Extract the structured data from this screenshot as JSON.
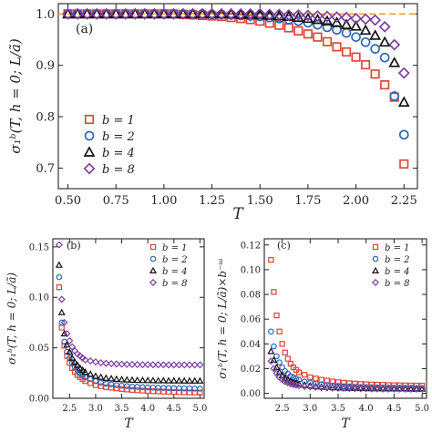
{
  "chart_data": [
    {
      "panel": "(a)",
      "type": "scatter",
      "xlabel": "T",
      "ylabel": "σ₁ᵇ(T, h = 0; L/ã)",
      "xlim": [
        0.45,
        2.32
      ],
      "ylim": [
        0.66,
        1.02
      ],
      "xticks": [
        "0.50",
        "0.75",
        "1.00",
        "1.25",
        "1.50",
        "1.75",
        "2.00",
        "2.25"
      ],
      "yticks": [
        "0.7",
        "0.8",
        "0.9",
        "1.0"
      ],
      "reference_line": {
        "y": 1.0,
        "style": "dashed",
        "color": "#f0a030"
      },
      "legend_position": "lower-left",
      "series": [
        {
          "name": "b = 1",
          "marker": "square",
          "color": "#e0453a",
          "x": [
            0.5,
            0.55,
            0.6,
            0.65,
            0.7,
            0.75,
            0.8,
            0.85,
            0.9,
            0.95,
            1.0,
            1.05,
            1.1,
            1.15,
            1.2,
            1.25,
            1.3,
            1.35,
            1.4,
            1.45,
            1.5,
            1.55,
            1.6,
            1.65,
            1.7,
            1.75,
            1.8,
            1.85,
            1.9,
            1.95,
            2.0,
            2.05,
            2.1,
            2.15,
            2.2,
            2.25
          ],
          "y": [
            1.0,
            1.0,
            1.0,
            1.0,
            1.0,
            1.0,
            1.0,
            1.0,
            1.0,
            1.0,
            1.0,
            1.0,
            0.999,
            0.998,
            0.997,
            0.996,
            0.995,
            0.993,
            0.991,
            0.989,
            0.986,
            0.982,
            0.978,
            0.973,
            0.967,
            0.961,
            0.955,
            0.946,
            0.936,
            0.926,
            0.916,
            0.901,
            0.883,
            0.862,
            0.838,
            0.708
          ]
        },
        {
          "name": "b = 2",
          "marker": "circle",
          "color": "#2f64b8",
          "x": [
            0.5,
            0.55,
            0.6,
            0.65,
            0.7,
            0.75,
            0.8,
            0.85,
            0.9,
            0.95,
            1.0,
            1.05,
            1.1,
            1.15,
            1.2,
            1.25,
            1.3,
            1.35,
            1.4,
            1.45,
            1.5,
            1.55,
            1.6,
            1.65,
            1.7,
            1.75,
            1.8,
            1.85,
            1.9,
            1.95,
            2.0,
            2.05,
            2.1,
            2.15,
            2.2,
            2.25
          ],
          "y": [
            1.0,
            1.0,
            1.0,
            1.0,
            1.0,
            1.0,
            1.0,
            1.0,
            1.0,
            1.0,
            1.0,
            1.0,
            1.0,
            1.0,
            1.0,
            0.999,
            0.999,
            0.998,
            0.997,
            0.996,
            0.995,
            0.993,
            0.991,
            0.989,
            0.986,
            0.983,
            0.979,
            0.974,
            0.969,
            0.963,
            0.955,
            0.945,
            0.932,
            0.915,
            0.84,
            0.765
          ]
        },
        {
          "name": "b = 4",
          "marker": "triangle",
          "color": "#111111",
          "x": [
            0.5,
            0.55,
            0.6,
            0.65,
            0.7,
            0.75,
            0.8,
            0.85,
            0.9,
            0.95,
            1.0,
            1.05,
            1.1,
            1.15,
            1.2,
            1.25,
            1.3,
            1.35,
            1.4,
            1.45,
            1.5,
            1.55,
            1.6,
            1.65,
            1.7,
            1.75,
            1.8,
            1.85,
            1.9,
            1.95,
            2.0,
            2.05,
            2.1,
            2.15,
            2.2,
            2.25
          ],
          "y": [
            1.0,
            1.0,
            1.0,
            1.0,
            1.0,
            1.0,
            1.0,
            1.0,
            1.0,
            1.0,
            1.0,
            1.0,
            1.0,
            1.0,
            1.0,
            1.0,
            1.0,
            1.0,
            0.999,
            0.999,
            0.998,
            0.997,
            0.996,
            0.995,
            0.993,
            0.991,
            0.989,
            0.986,
            0.983,
            0.979,
            0.976,
            0.968,
            0.958,
            0.945,
            0.905,
            0.828
          ]
        },
        {
          "name": "b = 8",
          "marker": "diamond",
          "color": "#7b3f9e",
          "x": [
            0.5,
            0.55,
            0.6,
            0.65,
            0.7,
            0.75,
            0.8,
            0.85,
            0.9,
            0.95,
            1.0,
            1.05,
            1.1,
            1.15,
            1.2,
            1.25,
            1.3,
            1.35,
            1.4,
            1.45,
            1.5,
            1.55,
            1.6,
            1.65,
            1.7,
            1.75,
            1.8,
            1.85,
            1.9,
            1.95,
            2.0,
            2.05,
            2.1,
            2.15,
            2.2,
            2.25
          ],
          "y": [
            1.0,
            1.0,
            1.0,
            1.0,
            1.0,
            1.0,
            1.0,
            1.0,
            1.0,
            1.0,
            1.0,
            1.0,
            1.0,
            1.0,
            1.0,
            1.0,
            1.0,
            1.0,
            1.0,
            1.0,
            1.0,
            0.999,
            0.999,
            0.998,
            0.998,
            0.997,
            0.996,
            0.995,
            0.994,
            0.993,
            0.991,
            0.99,
            0.988,
            0.975,
            0.94,
            0.885
          ]
        }
      ]
    },
    {
      "panel": "(b)",
      "type": "scatter",
      "xlabel": "T",
      "ylabel": "σ₁ᵇ(T, h = 0; L/ã)",
      "xlim": [
        2.18,
        5.08
      ],
      "ylim": [
        0.0,
        0.158
      ],
      "xticks": [
        "2.5",
        "3.0",
        "3.5",
        "4.0",
        "4.5",
        "5.0"
      ],
      "yticks": [
        "0.00",
        "0.05",
        "0.10",
        "0.15"
      ],
      "legend_position": "top-right",
      "series": [
        {
          "name": "b = 1",
          "marker": "square",
          "color": "#e0453a",
          "x": [
            2.3,
            2.35,
            2.4,
            2.45,
            2.5,
            2.55,
            2.6,
            2.65,
            2.7,
            2.75,
            2.8,
            2.9,
            3.0,
            3.1,
            3.2,
            3.3,
            3.4,
            3.5,
            3.6,
            3.7,
            3.8,
            3.9,
            4.0,
            4.1,
            4.2,
            4.3,
            4.4,
            4.5,
            4.6,
            4.7,
            4.8,
            4.9,
            5.0
          ],
          "y": [
            0.11,
            0.07,
            0.052,
            0.042,
            0.035,
            0.03,
            0.026,
            0.023,
            0.021,
            0.019,
            0.017,
            0.015,
            0.013,
            0.012,
            0.011,
            0.0105,
            0.0098,
            0.0092,
            0.0087,
            0.0083,
            0.0079,
            0.0076,
            0.0073,
            0.007,
            0.0068,
            0.0066,
            0.0064,
            0.0062,
            0.006,
            0.0059,
            0.0058,
            0.0057,
            0.0056
          ]
        },
        {
          "name": "b = 2",
          "marker": "circle",
          "color": "#2f64b8",
          "x": [
            2.3,
            2.35,
            2.4,
            2.45,
            2.5,
            2.55,
            2.6,
            2.65,
            2.7,
            2.75,
            2.8,
            2.9,
            3.0,
            3.1,
            3.2,
            3.3,
            3.4,
            3.5,
            3.6,
            3.7,
            3.8,
            3.9,
            4.0,
            4.1,
            4.2,
            4.3,
            4.4,
            4.5,
            4.6,
            4.7,
            4.8,
            4.9,
            5.0
          ],
          "y": [
            0.12,
            0.075,
            0.056,
            0.046,
            0.04,
            0.035,
            0.031,
            0.028,
            0.025,
            0.023,
            0.021,
            0.019,
            0.017,
            0.0155,
            0.0145,
            0.0137,
            0.013,
            0.0125,
            0.012,
            0.0116,
            0.0113,
            0.011,
            0.0108,
            0.0106,
            0.0104,
            0.0102,
            0.0101,
            0.01,
            0.0099,
            0.0098,
            0.0097,
            0.0096,
            0.0095
          ]
        },
        {
          "name": "b = 4",
          "marker": "triangle",
          "color": "#111111",
          "x": [
            2.3,
            2.35,
            2.4,
            2.45,
            2.5,
            2.55,
            2.6,
            2.65,
            2.7,
            2.75,
            2.8,
            2.9,
            3.0,
            3.1,
            3.2,
            3.3,
            3.4,
            3.5,
            3.6,
            3.7,
            3.8,
            3.9,
            4.0,
            4.1,
            4.2,
            4.3,
            4.4,
            4.5,
            4.6,
            4.7,
            4.8,
            4.9,
            5.0
          ],
          "y": [
            0.132,
            0.085,
            0.064,
            0.053,
            0.046,
            0.04,
            0.036,
            0.033,
            0.03,
            0.028,
            0.026,
            0.024,
            0.022,
            0.021,
            0.02,
            0.0195,
            0.019,
            0.0186,
            0.0183,
            0.0181,
            0.0179,
            0.0178,
            0.0177,
            0.0176,
            0.0175,
            0.0175,
            0.0174,
            0.0174,
            0.0174,
            0.0173,
            0.0173,
            0.0173,
            0.0173
          ]
        },
        {
          "name": "b = 8",
          "marker": "diamond",
          "color": "#7b3f9e",
          "x": [
            2.3,
            2.35,
            2.4,
            2.45,
            2.5,
            2.55,
            2.6,
            2.65,
            2.7,
            2.75,
            2.8,
            2.9,
            3.0,
            3.1,
            3.2,
            3.3,
            3.4,
            3.5,
            3.6,
            3.7,
            3.8,
            3.9,
            4.0,
            4.1,
            4.2,
            4.3,
            4.4,
            4.5,
            4.6,
            4.7,
            4.8,
            4.9,
            5.0
          ],
          "y": [
            0.152,
            0.098,
            0.075,
            0.064,
            0.057,
            0.051,
            0.047,
            0.044,
            0.042,
            0.04,
            0.038,
            0.037,
            0.036,
            0.0352,
            0.0347,
            0.0343,
            0.034,
            0.0338,
            0.0336,
            0.0335,
            0.0334,
            0.0333,
            0.0333,
            0.0332,
            0.0332,
            0.0332,
            0.0331,
            0.0331,
            0.0331,
            0.0331,
            0.0331,
            0.0331,
            0.0331
          ]
        }
      ]
    },
    {
      "panel": "(c)",
      "type": "scatter",
      "xlabel": "T",
      "ylabel": "σ₁ᵇ(T, h = 0; L/ã)×b⁻ᵚ",
      "xlim": [
        2.18,
        5.08
      ],
      "ylim": [
        -0.004,
        0.125
      ],
      "xticks": [
        "2.5",
        "3.0",
        "3.5",
        "4.0",
        "4.5",
        "5.0"
      ],
      "yticks": [
        "0.00",
        "0.02",
        "0.04",
        "0.06",
        "0.08",
        "0.10",
        "0.12"
      ],
      "legend_position": "top-right",
      "series": [
        {
          "name": "b = 1",
          "marker": "square",
          "color": "#e0453a",
          "x": [
            2.3,
            2.35,
            2.4,
            2.45,
            2.5,
            2.55,
            2.6,
            2.65,
            2.7,
            2.75,
            2.8,
            2.9,
            3.0,
            3.1,
            3.2,
            3.3,
            3.4,
            3.5,
            3.6,
            3.7,
            3.8,
            3.9,
            4.0,
            4.1,
            4.2,
            4.3,
            4.4,
            4.5,
            4.6,
            4.7,
            4.8,
            4.9,
            5.0
          ],
          "y": [
            0.108,
            0.082,
            0.063,
            0.05,
            0.04,
            0.033,
            0.028,
            0.024,
            0.021,
            0.019,
            0.017,
            0.015,
            0.013,
            0.012,
            0.011,
            0.0103,
            0.0096,
            0.009,
            0.0086,
            0.0082,
            0.0079,
            0.0076,
            0.0074,
            0.0072,
            0.007,
            0.0069,
            0.0067,
            0.0066,
            0.0065,
            0.0064,
            0.0063,
            0.0063,
            0.0062
          ]
        },
        {
          "name": "b = 2",
          "marker": "circle",
          "color": "#2f64b8",
          "x": [
            2.3,
            2.35,
            2.4,
            2.45,
            2.5,
            2.55,
            2.6,
            2.65,
            2.7,
            2.75,
            2.8,
            2.9,
            3.0,
            3.1,
            3.2,
            3.3,
            3.4,
            3.5,
            3.6,
            3.7,
            3.8,
            3.9,
            4.0,
            4.1,
            4.2,
            4.3,
            4.4,
            4.5,
            4.6,
            4.7,
            4.8,
            4.9,
            5.0
          ],
          "y": [
            0.05,
            0.038,
            0.03,
            0.025,
            0.021,
            0.018,
            0.016,
            0.014,
            0.013,
            0.012,
            0.011,
            0.0095,
            0.0085,
            0.0078,
            0.0072,
            0.0067,
            0.0063,
            0.006,
            0.0057,
            0.0055,
            0.0053,
            0.0051,
            0.005,
            0.0049,
            0.0048,
            0.0047,
            0.0046,
            0.0045,
            0.0045,
            0.0044,
            0.0044,
            0.0043,
            0.0043
          ]
        },
        {
          "name": "b = 4",
          "marker": "triangle",
          "color": "#111111",
          "x": [
            2.3,
            2.35,
            2.4,
            2.45,
            2.5,
            2.55,
            2.6,
            2.65,
            2.7,
            2.75,
            2.8,
            2.9,
            3.0,
            3.1,
            3.2,
            3.3,
            3.4,
            3.5,
            3.6,
            3.7,
            3.8,
            3.9,
            4.0,
            4.1,
            4.2,
            4.3,
            4.4,
            4.5,
            4.6,
            4.7,
            4.8,
            4.9,
            5.0
          ],
          "y": [
            0.034,
            0.027,
            0.021,
            0.017,
            0.0145,
            0.0125,
            0.011,
            0.0098,
            0.0089,
            0.0082,
            0.0076,
            0.0068,
            0.0062,
            0.0057,
            0.0053,
            0.005,
            0.0048,
            0.0046,
            0.0044,
            0.0043,
            0.0042,
            0.0041,
            0.004,
            0.0039,
            0.0039,
            0.0038,
            0.0038,
            0.0037,
            0.0037,
            0.0037,
            0.0036,
            0.0036,
            0.0036
          ]
        },
        {
          "name": "b = 8",
          "marker": "diamond",
          "color": "#7b3f9e",
          "x": [
            2.3,
            2.35,
            2.4,
            2.45,
            2.5,
            2.55,
            2.6,
            2.65,
            2.7,
            2.75,
            2.8,
            2.9,
            3.0,
            3.1,
            3.2,
            3.3,
            3.4,
            3.5,
            3.6,
            3.7,
            3.8,
            3.9,
            4.0,
            4.1,
            4.2,
            4.3,
            4.4,
            4.5,
            4.6,
            4.7,
            4.8,
            4.9,
            5.0
          ],
          "y": [
            0.026,
            0.02,
            0.016,
            0.013,
            0.011,
            0.0095,
            0.0085,
            0.0077,
            0.0071,
            0.0066,
            0.0062,
            0.0056,
            0.0052,
            0.0049,
            0.0046,
            0.0044,
            0.0042,
            0.0041,
            0.004,
            0.0039,
            0.0038,
            0.0037,
            0.0037,
            0.0036,
            0.0036,
            0.0035,
            0.0035,
            0.0035,
            0.0035,
            0.0034,
            0.0034,
            0.0034,
            0.0034
          ]
        }
      ]
    }
  ]
}
